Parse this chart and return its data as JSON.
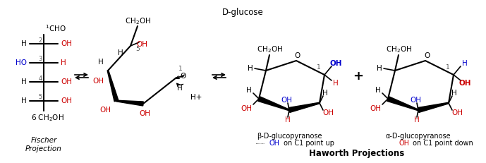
{
  "title": "D-glucose",
  "bg_color": "#ffffff",
  "black": "#000000",
  "red": "#cc0000",
  "blue": "#0000cc",
  "fischer_label": "Fischer\nProjection",
  "haworth_label": "Haworth Projections",
  "beta_label": "β-D-glucopyranose",
  "beta_sub": "OH on C1 point up",
  "alpha_label": "α-D-glucopyranose",
  "alpha_sub": "OH on C1 point down"
}
